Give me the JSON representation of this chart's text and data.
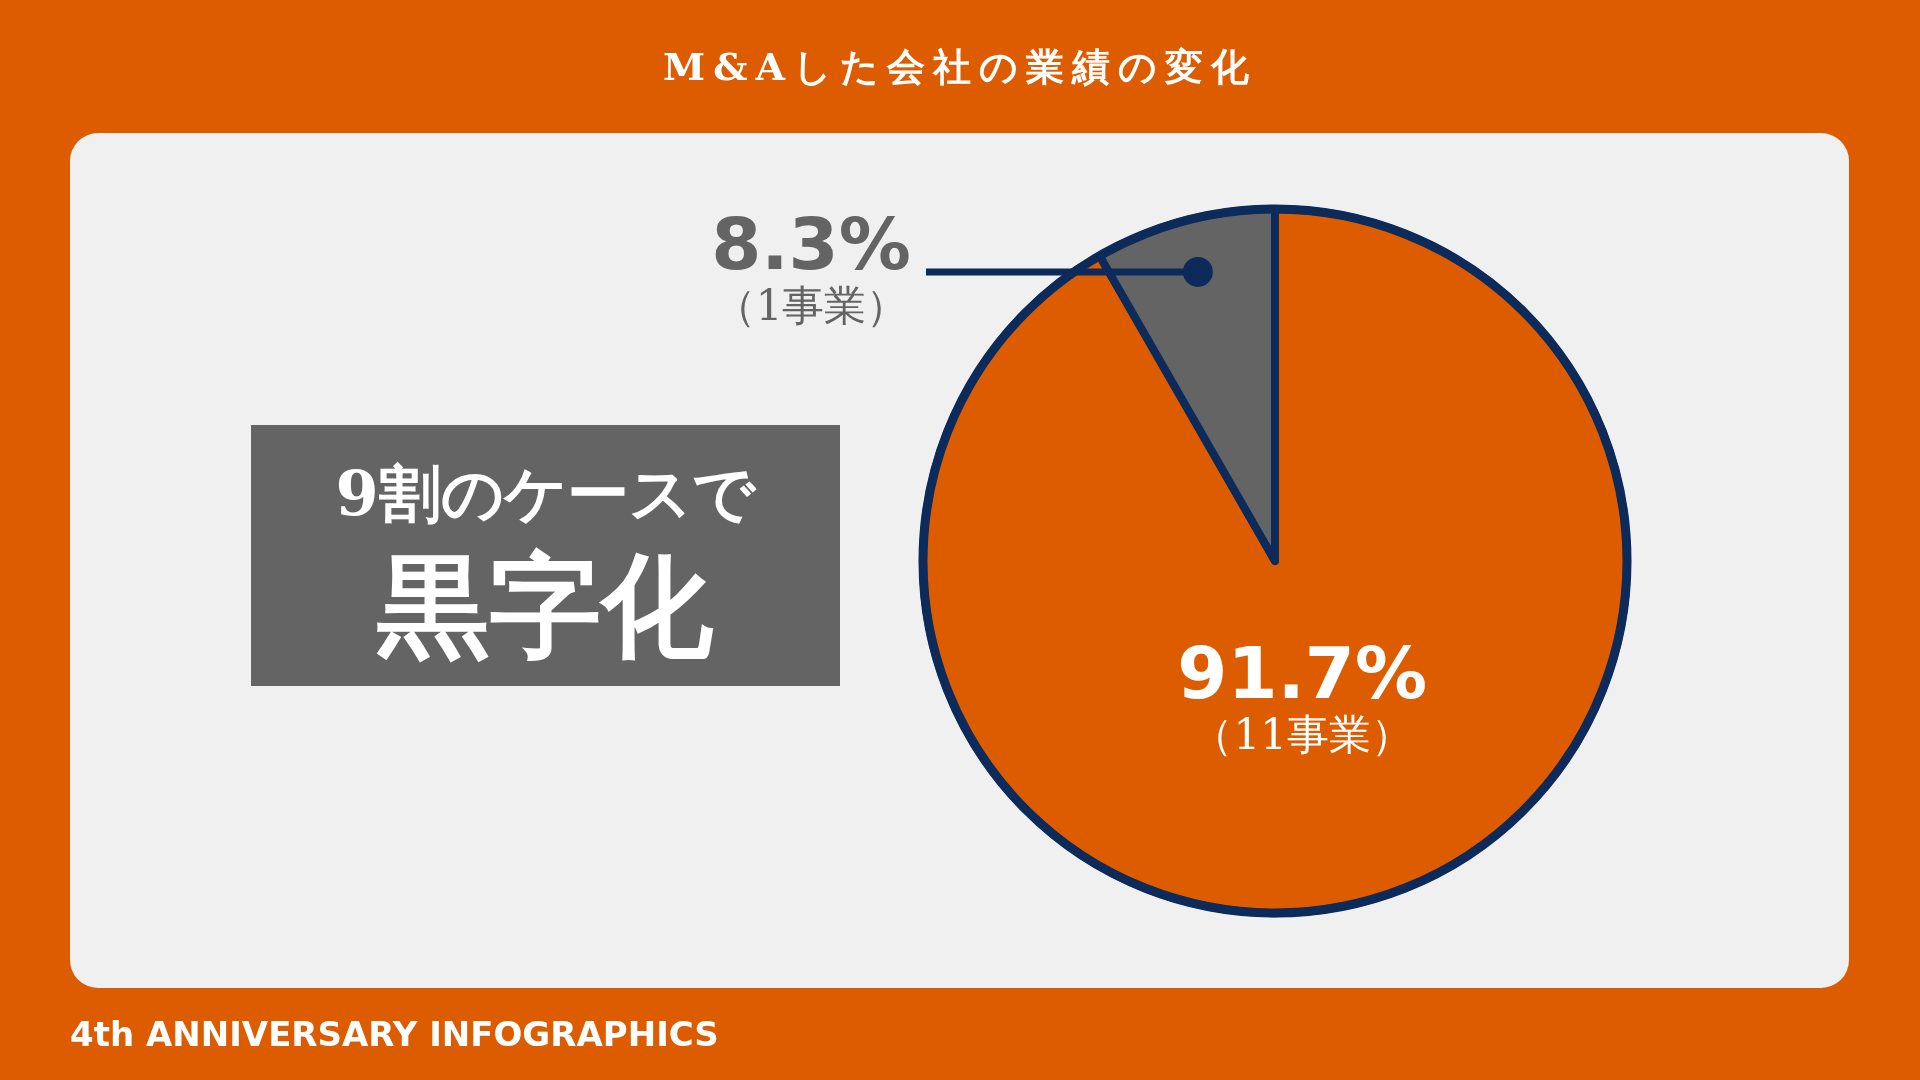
{
  "chart_data": {
    "type": "pie",
    "title": "M&Aした会社の業績の変化",
    "categories": [
      "（11事業）",
      "（1事業）"
    ],
    "values": [
      91.7,
      8.3
    ],
    "value_labels": [
      "91.7%",
      "8.3%"
    ],
    "colors": [
      "#dd5c00",
      "#646464"
    ],
    "annotations": [
      "9割のケースで**黒字化**",
      "4th ANNIVERSARY INFOGRAPHICS"
    ]
  }
}
